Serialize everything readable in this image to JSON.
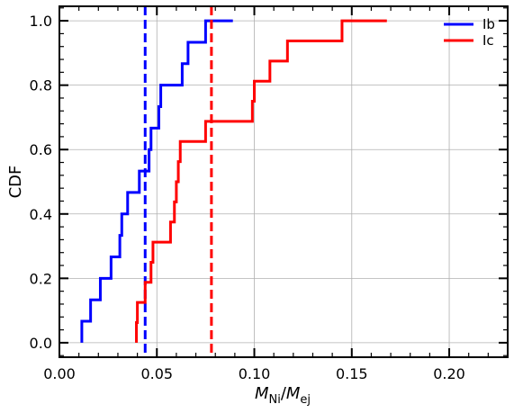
{
  "chart_data": {
    "type": "line",
    "step": true,
    "xlabel": "M_Ni/M_ej",
    "xlabel_parts": {
      "main": "M",
      "sub1": "Ni",
      "slash": "/",
      "main2": "M",
      "sub2": "ej"
    },
    "ylabel": "CDF",
    "xlim": [
      0.0,
      0.23
    ],
    "ylim": [
      -0.045,
      1.045
    ],
    "xticks": [
      0.0,
      0.05,
      0.1,
      0.15,
      0.2
    ],
    "xtick_labels": [
      "0.00",
      "0.05",
      "0.10",
      "0.15",
      "0.20"
    ],
    "yticks": [
      0.0,
      0.2,
      0.4,
      0.6,
      0.8,
      1.0
    ],
    "ytick_labels": [
      "0.0",
      "0.2",
      "0.4",
      "0.6",
      "0.8",
      "1.0"
    ],
    "grid": true,
    "legend_position": "top-right",
    "series": [
      {
        "name": "Ib",
        "color": "#0000ff",
        "points": [
          [
            0.0115,
            0.0
          ],
          [
            0.0115,
            0.0667
          ],
          [
            0.016,
            0.0667
          ],
          [
            0.016,
            0.1333
          ],
          [
            0.021,
            0.1333
          ],
          [
            0.021,
            0.2
          ],
          [
            0.0265,
            0.2
          ],
          [
            0.0265,
            0.2667
          ],
          [
            0.031,
            0.2667
          ],
          [
            0.031,
            0.3333
          ],
          [
            0.032,
            0.3333
          ],
          [
            0.032,
            0.4
          ],
          [
            0.035,
            0.4
          ],
          [
            0.035,
            0.4667
          ],
          [
            0.041,
            0.4667
          ],
          [
            0.041,
            0.5333
          ],
          [
            0.046,
            0.5333
          ],
          [
            0.046,
            0.6
          ],
          [
            0.047,
            0.6
          ],
          [
            0.047,
            0.6667
          ],
          [
            0.051,
            0.6667
          ],
          [
            0.051,
            0.7333
          ],
          [
            0.052,
            0.7333
          ],
          [
            0.052,
            0.8
          ],
          [
            0.063,
            0.8
          ],
          [
            0.063,
            0.8667
          ],
          [
            0.066,
            0.8667
          ],
          [
            0.066,
            0.9333
          ],
          [
            0.075,
            0.9333
          ],
          [
            0.075,
            1.0
          ],
          [
            0.089,
            1.0
          ]
        ],
        "mean_line": 0.044
      },
      {
        "name": "Ic",
        "color": "#ff0000",
        "points": [
          [
            0.0395,
            0.0
          ],
          [
            0.0395,
            0.0625
          ],
          [
            0.04,
            0.0625
          ],
          [
            0.04,
            0.125
          ],
          [
            0.044,
            0.125
          ],
          [
            0.044,
            0.1875
          ],
          [
            0.047,
            0.1875
          ],
          [
            0.047,
            0.25
          ],
          [
            0.048,
            0.25
          ],
          [
            0.048,
            0.3125
          ],
          [
            0.057,
            0.3125
          ],
          [
            0.057,
            0.375
          ],
          [
            0.059,
            0.375
          ],
          [
            0.059,
            0.4375
          ],
          [
            0.06,
            0.4375
          ],
          [
            0.06,
            0.5
          ],
          [
            0.061,
            0.5
          ],
          [
            0.061,
            0.5625
          ],
          [
            0.062,
            0.5625
          ],
          [
            0.062,
            0.625
          ],
          [
            0.075,
            0.625
          ],
          [
            0.075,
            0.6875
          ],
          [
            0.099,
            0.6875
          ],
          [
            0.099,
            0.75
          ],
          [
            0.1,
            0.75
          ],
          [
            0.1,
            0.8125
          ],
          [
            0.108,
            0.8125
          ],
          [
            0.108,
            0.875
          ],
          [
            0.117,
            0.875
          ],
          [
            0.117,
            0.9375
          ],
          [
            0.145,
            0.9375
          ],
          [
            0.145,
            1.0
          ],
          [
            0.168,
            1.0
          ]
        ],
        "mean_line": 0.078
      }
    ]
  }
}
